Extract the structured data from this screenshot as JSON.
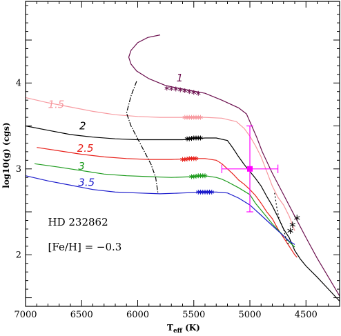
{
  "chart_data": {
    "type": "line",
    "title": "",
    "xlabel_main": "T",
    "xlabel_sub": "eff",
    "xlabel_unit": "(K)",
    "ylabel": "log10(g) (cgs)",
    "xlim": [
      7000,
      4200
    ],
    "ylim": [
      1.4,
      4.95
    ],
    "x_ticks": [
      7000,
      6500,
      6000,
      5500,
      5000,
      4500
    ],
    "y_ticks": [
      2,
      3,
      4
    ],
    "annotations": [
      {
        "id": "star",
        "text": "HD 232862",
        "x": 6800,
        "y": 2.34
      },
      {
        "id": "feh",
        "text": "[Fe/H]  =  −0.3",
        "x": 6800,
        "y": 2.05
      }
    ],
    "series": [
      {
        "name": "1",
        "color": "#6b0f4e",
        "label_x": 5655,
        "label_y": 4.02,
        "points": [
          [
            5800,
            4.56
          ],
          [
            5910,
            4.53
          ],
          [
            6000,
            4.47
          ],
          [
            6060,
            4.38
          ],
          [
            6080,
            4.3
          ],
          [
            6060,
            4.22
          ],
          [
            6010,
            4.14
          ],
          [
            5900,
            4.05
          ],
          [
            5750,
            3.97
          ],
          [
            5600,
            3.93
          ],
          [
            5400,
            3.88
          ],
          [
            5250,
            3.8
          ],
          [
            5100,
            3.71
          ],
          [
            5030,
            3.64
          ],
          [
            4990,
            3.52
          ],
          [
            4940,
            3.37
          ],
          [
            4890,
            3.2
          ],
          [
            4800,
            2.95
          ],
          [
            4700,
            2.7
          ],
          [
            4600,
            2.45
          ],
          [
            4500,
            2.2
          ],
          [
            4400,
            1.96
          ],
          [
            4300,
            1.74
          ],
          [
            4200,
            1.52
          ]
        ],
        "markers": [
          [
            5740,
            3.94
          ],
          [
            5700,
            3.935
          ],
          [
            5660,
            3.93
          ],
          [
            5620,
            3.92
          ],
          [
            5580,
            3.91
          ],
          [
            5540,
            3.9
          ],
          [
            5500,
            3.89
          ],
          [
            5460,
            3.88
          ]
        ]
      },
      {
        "name": "1.5",
        "color": "#f79aa0",
        "label_x": 6800,
        "label_y": 3.71,
        "points": [
          [
            7000,
            3.83
          ],
          [
            6800,
            3.77
          ],
          [
            6600,
            3.72
          ],
          [
            6400,
            3.67
          ],
          [
            6200,
            3.63
          ],
          [
            6000,
            3.61
          ],
          [
            5800,
            3.6
          ],
          [
            5600,
            3.6
          ],
          [
            5400,
            3.6
          ],
          [
            5250,
            3.59
          ],
          [
            5120,
            3.55
          ],
          [
            5050,
            3.47
          ],
          [
            5000,
            3.38
          ],
          [
            4950,
            3.27
          ],
          [
            4900,
            3.14
          ],
          [
            4850,
            2.97
          ],
          [
            4800,
            2.8
          ],
          [
            4750,
            2.67
          ],
          [
            4700,
            2.58
          ],
          [
            4650,
            2.45
          ],
          [
            4600,
            2.28
          ]
        ],
        "markers": [
          [
            5580,
            3.6
          ],
          [
            5560,
            3.6
          ],
          [
            5540,
            3.6
          ],
          [
            5520,
            3.6
          ],
          [
            5500,
            3.6
          ],
          [
            5480,
            3.6
          ],
          [
            5460,
            3.6
          ],
          [
            5440,
            3.6
          ]
        ]
      },
      {
        "name": "2",
        "color": "#000000",
        "label_x": 6520,
        "label_y": 3.46,
        "points": [
          [
            7000,
            3.5
          ],
          [
            6800,
            3.45
          ],
          [
            6600,
            3.4
          ],
          [
            6400,
            3.37
          ],
          [
            6200,
            3.35
          ],
          [
            6000,
            3.34
          ],
          [
            5800,
            3.34
          ],
          [
            5600,
            3.34
          ],
          [
            5400,
            3.36
          ],
          [
            5300,
            3.36
          ],
          [
            5200,
            3.33
          ],
          [
            5150,
            3.24
          ],
          [
            5100,
            3.14
          ],
          [
            5050,
            3.05
          ],
          [
            5000,
            2.97
          ],
          [
            4950,
            2.89
          ],
          [
            4900,
            2.8
          ],
          [
            4850,
            2.68
          ],
          [
            4800,
            2.57
          ],
          [
            4750,
            2.44
          ],
          [
            4700,
            2.3
          ],
          [
            4650,
            2.2
          ],
          [
            4600,
            2.05
          ],
          [
            4550,
            1.95
          ],
          [
            4500,
            1.87
          ],
          [
            4400,
            1.74
          ],
          [
            4300,
            1.6
          ],
          [
            4200,
            1.46
          ]
        ],
        "markers": [
          [
            5560,
            3.35
          ],
          [
            5540,
            3.35
          ],
          [
            5520,
            3.355
          ],
          [
            5500,
            3.36
          ],
          [
            5480,
            3.36
          ],
          [
            5460,
            3.36
          ],
          [
            5440,
            3.36
          ]
        ]
      },
      {
        "name": "2.5",
        "color": "#e8231d",
        "label_x": 6540,
        "label_y": 3.2,
        "points": [
          [
            6900,
            3.25
          ],
          [
            6700,
            3.21
          ],
          [
            6500,
            3.17
          ],
          [
            6300,
            3.14
          ],
          [
            6100,
            3.12
          ],
          [
            5900,
            3.11
          ],
          [
            5700,
            3.11
          ],
          [
            5500,
            3.12
          ],
          [
            5400,
            3.12
          ],
          [
            5300,
            3.1
          ],
          [
            5250,
            3.06
          ],
          [
            5200,
            3.0
          ],
          [
            5150,
            2.94
          ],
          [
            5100,
            2.87
          ],
          [
            5050,
            2.82
          ],
          [
            5000,
            2.76
          ],
          [
            4950,
            2.69
          ],
          [
            4900,
            2.6
          ],
          [
            4850,
            2.5
          ],
          [
            4800,
            2.42
          ],
          [
            4750,
            2.3
          ],
          [
            4700,
            2.2
          ],
          [
            4650,
            2.1
          ],
          [
            4600,
            2.0
          ],
          [
            4580,
            1.97
          ]
        ],
        "markers": [
          [
            5600,
            3.11
          ],
          [
            5580,
            3.11
          ],
          [
            5560,
            3.115
          ],
          [
            5540,
            3.12
          ],
          [
            5520,
            3.12
          ],
          [
            5500,
            3.12
          ],
          [
            5480,
            3.12
          ]
        ]
      },
      {
        "name": "3",
        "color": "#1d9b1d",
        "label_x": 6530,
        "label_y": 2.99,
        "points": [
          [
            6920,
            3.06
          ],
          [
            6700,
            3.02
          ],
          [
            6500,
            2.98
          ],
          [
            6300,
            2.94
          ],
          [
            6100,
            2.92
          ],
          [
            5900,
            2.91
          ],
          [
            5700,
            2.9
          ],
          [
            5500,
            2.91
          ],
          [
            5400,
            2.92
          ],
          [
            5300,
            2.9
          ],
          [
            5250,
            2.88
          ],
          [
            5200,
            2.85
          ],
          [
            5100,
            2.78
          ],
          [
            5000,
            2.7
          ],
          [
            4950,
            2.6
          ],
          [
            4900,
            2.52
          ],
          [
            4850,
            2.44
          ],
          [
            4800,
            2.36
          ],
          [
            4750,
            2.29
          ],
          [
            4700,
            2.22
          ],
          [
            4650,
            2.15
          ],
          [
            4600,
            2.09
          ]
        ],
        "markers": [
          [
            5520,
            2.91
          ],
          [
            5500,
            2.91
          ],
          [
            5480,
            2.915
          ],
          [
            5460,
            2.92
          ],
          [
            5440,
            2.92
          ],
          [
            5420,
            2.92
          ],
          [
            5400,
            2.92
          ]
        ]
      },
      {
        "name": "3.5",
        "color": "#1c1ccc",
        "label_x": 6530,
        "label_y": 2.8,
        "points": [
          [
            7000,
            2.92
          ],
          [
            6800,
            2.86
          ],
          [
            6600,
            2.81
          ],
          [
            6400,
            2.76
          ],
          [
            6200,
            2.73
          ],
          [
            6000,
            2.72
          ],
          [
            5800,
            2.71
          ],
          [
            5600,
            2.72
          ],
          [
            5400,
            2.73
          ],
          [
            5300,
            2.73
          ],
          [
            5200,
            2.72
          ],
          [
            5100,
            2.66
          ],
          [
            5000,
            2.58
          ],
          [
            4950,
            2.52
          ],
          [
            4900,
            2.46
          ],
          [
            4850,
            2.4
          ],
          [
            4800,
            2.34
          ],
          [
            4750,
            2.28
          ],
          [
            4700,
            2.22
          ],
          [
            4650,
            2.16
          ],
          [
            4600,
            2.12
          ]
        ],
        "markers": [
          [
            5460,
            2.73
          ],
          [
            5440,
            2.73
          ],
          [
            5420,
            2.73
          ],
          [
            5400,
            2.73
          ],
          [
            5380,
            2.73
          ],
          [
            5360,
            2.73
          ],
          [
            5340,
            2.73
          ]
        ]
      }
    ],
    "boundaries": [
      {
        "name": "hook",
        "color": "#000000",
        "dash": "7 2 1.5 2",
        "points": [
          [
            6010,
            4.02
          ],
          [
            6060,
            3.85
          ],
          [
            6100,
            3.65
          ],
          [
            6060,
            3.5
          ],
          [
            6000,
            3.35
          ],
          [
            5940,
            3.2
          ],
          [
            5880,
            3.05
          ],
          [
            5840,
            2.9
          ],
          [
            5820,
            2.72
          ]
        ]
      },
      {
        "name": "giant-edge",
        "color": "#000000",
        "dash": "2 3",
        "points": [
          [
            4780,
            2.72
          ],
          [
            4760,
            2.55
          ],
          [
            4740,
            2.42
          ],
          [
            4700,
            2.3
          ],
          [
            4680,
            2.2
          ],
          [
            4650,
            2.1
          ]
        ]
      }
    ],
    "obs": {
      "color": "#ff00ff",
      "teff": 5000,
      "logg": 3.0,
      "teff_err": [
        5250,
        4750
      ],
      "logg_err": [
        2.5,
        3.5
      ],
      "caps": {
        "teff": 0.05,
        "logg": 30
      }
    },
    "extra_markers": [
      [
        4580,
        2.43
      ],
      [
        4620,
        2.35
      ],
      [
        4640,
        2.28
      ]
    ]
  }
}
